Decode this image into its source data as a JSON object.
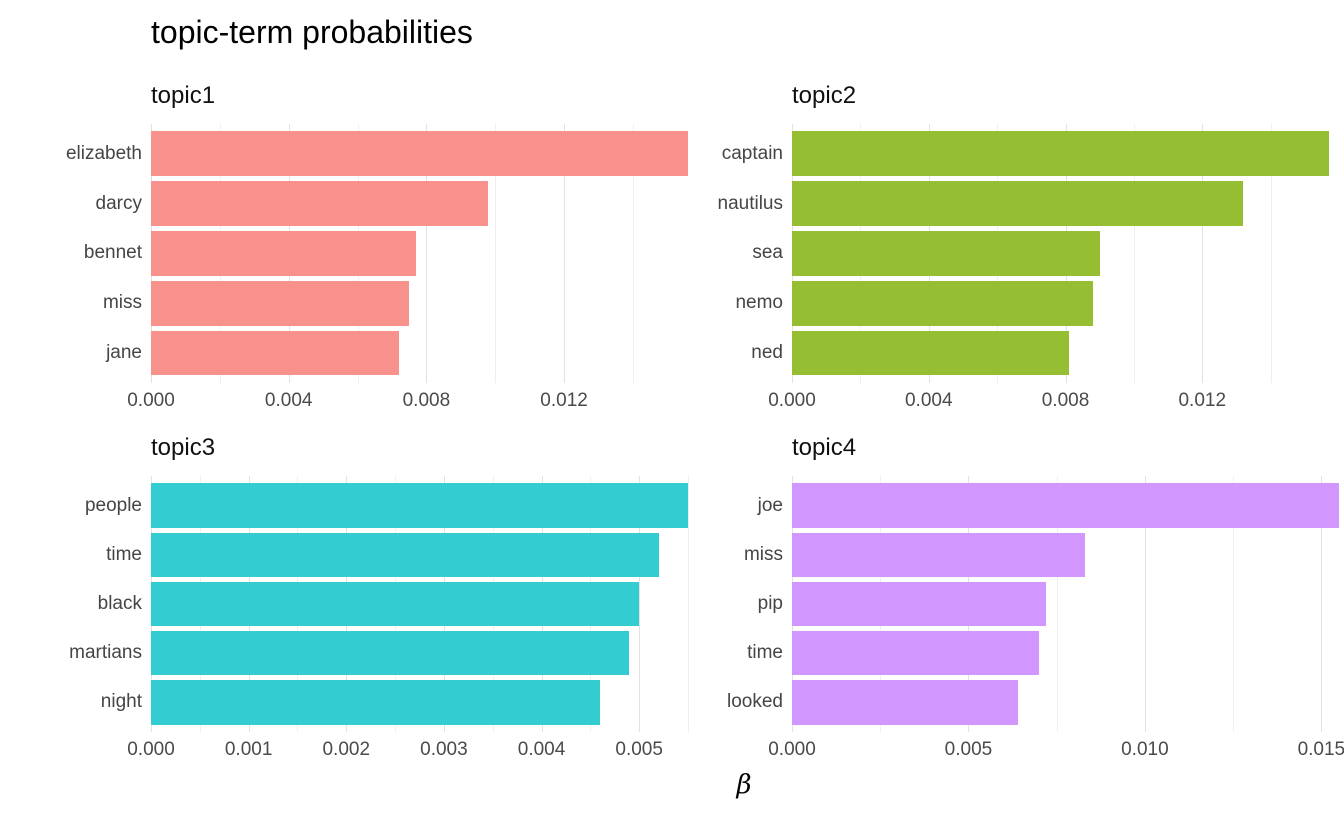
{
  "title": "topic-term probabilities",
  "x_axis_title": "β",
  "chart_data": {
    "type": "bar",
    "orientation": "horizontal",
    "title": "topic-term probabilities",
    "xlabel": "β",
    "ylabel": "",
    "grid": "on",
    "legend": "none",
    "facets": [
      {
        "label": "topic1",
        "color": "#F8918B",
        "xlim": [
          0,
          0.0156
        ],
        "bars": [
          {
            "term": "elizabeth",
            "value": 0.0156
          },
          {
            "term": "darcy",
            "value": 0.0098
          },
          {
            "term": "bennet",
            "value": 0.0077
          },
          {
            "term": "miss",
            "value": 0.0075
          },
          {
            "term": "jane",
            "value": 0.0072
          }
        ],
        "major_ticks": [
          {
            "label": "0.000",
            "value": 0
          },
          {
            "label": "0.004",
            "value": 0.004
          },
          {
            "label": "0.008",
            "value": 0.008
          },
          {
            "label": "0.012",
            "value": 0.012
          }
        ],
        "minor_ticks": [
          0.002,
          0.006,
          0.01,
          0.014
        ]
      },
      {
        "label": "topic2",
        "color": "#96BE33",
        "xlim": [
          0,
          0.016
        ],
        "bars": [
          {
            "term": "captain",
            "value": 0.0157
          },
          {
            "term": "nautilus",
            "value": 0.0132
          },
          {
            "term": "sea",
            "value": 0.009
          },
          {
            "term": "nemo",
            "value": 0.0088
          },
          {
            "term": "ned",
            "value": 0.0081
          }
        ],
        "major_ticks": [
          {
            "label": "0.000",
            "value": 0
          },
          {
            "label": "0.004",
            "value": 0.004
          },
          {
            "label": "0.008",
            "value": 0.008
          },
          {
            "label": "0.012",
            "value": 0.012
          }
        ],
        "minor_ticks": [
          0.002,
          0.006,
          0.01,
          0.014
        ]
      },
      {
        "label": "topic3",
        "color": "#33CCD0",
        "xlim": [
          0,
          0.0055
        ],
        "bars": [
          {
            "term": "people",
            "value": 0.0055
          },
          {
            "term": "time",
            "value": 0.0052
          },
          {
            "term": "black",
            "value": 0.005
          },
          {
            "term": "martians",
            "value": 0.0049
          },
          {
            "term": "night",
            "value": 0.0046
          }
        ],
        "major_ticks": [
          {
            "label": "0.000",
            "value": 0
          },
          {
            "label": "0.001",
            "value": 0.001
          },
          {
            "label": "0.002",
            "value": 0.002
          },
          {
            "label": "0.003",
            "value": 0.003
          },
          {
            "label": "0.004",
            "value": 0.004
          },
          {
            "label": "0.005",
            "value": 0.005
          }
        ],
        "minor_ticks": [
          0.0005,
          0.0015,
          0.0025,
          0.0035,
          0.0045,
          0.0055
        ]
      },
      {
        "label": "topic4",
        "color": "#D296FF",
        "xlim": [
          0,
          0.0155
        ],
        "bars": [
          {
            "term": "joe",
            "value": 0.0155
          },
          {
            "term": "miss",
            "value": 0.0083
          },
          {
            "term": "pip",
            "value": 0.0072
          },
          {
            "term": "time",
            "value": 0.007
          },
          {
            "term": "looked",
            "value": 0.0064
          }
        ],
        "major_ticks": [
          {
            "label": "0.000",
            "value": 0
          },
          {
            "label": "0.005",
            "value": 0.005
          },
          {
            "label": "0.010",
            "value": 0.01
          },
          {
            "label": "0.015",
            "value": 0.015
          }
        ],
        "minor_ticks": [
          0.0025,
          0.0075,
          0.0125
        ]
      }
    ]
  }
}
